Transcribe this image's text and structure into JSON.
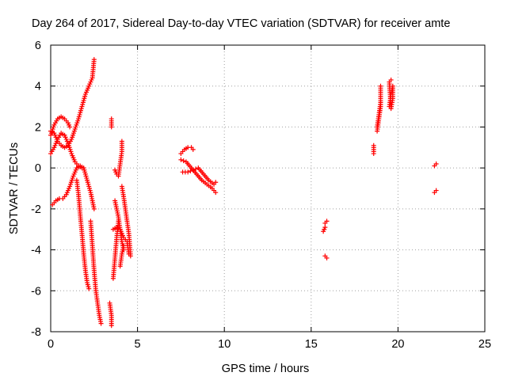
{
  "chart_data": {
    "type": "scatter",
    "title": "Day 264 of 2017, Sidereal Day-to-day VTEC variation (SDTVAR) for receiver amte",
    "xlabel": "GPS time / hours",
    "ylabel": "SDTVAR / TECUs",
    "xlim": [
      0,
      25
    ],
    "ylim": [
      -8,
      6
    ],
    "xticks": [
      "0",
      "5",
      "10",
      "15",
      "20",
      "25"
    ],
    "yticks": [
      "-8",
      "-6",
      "-4",
      "-2",
      "0",
      "2",
      "4",
      "6"
    ],
    "grid": true,
    "marker": "+",
    "series": [
      {
        "name": "SDTVAR",
        "color": "#ff0000",
        "tracks": [
          [
            [
              0.0,
              0.7
            ],
            [
              0.2,
              1.0
            ],
            [
              0.4,
              1.4
            ],
            [
              0.6,
              1.7
            ],
            [
              0.8,
              1.6
            ],
            [
              1.0,
              1.2
            ],
            [
              1.2,
              0.7
            ],
            [
              1.4,
              0.3
            ],
            [
              1.6,
              0.1
            ],
            [
              1.8,
              0.0
            ]
          ],
          [
            [
              0.0,
              1.6
            ],
            [
              0.2,
              2.1
            ],
            [
              0.4,
              2.4
            ],
            [
              0.6,
              2.5
            ],
            [
              0.8,
              2.4
            ],
            [
              1.0,
              2.2
            ],
            [
              1.1,
              2.0
            ]
          ],
          [
            [
              0.0,
              1.8
            ],
            [
              0.2,
              1.7
            ],
            [
              0.4,
              1.3
            ],
            [
              0.6,
              1.1
            ],
            [
              0.8,
              1.0
            ],
            [
              1.0,
              1.1
            ],
            [
              1.2,
              1.4
            ],
            [
              1.4,
              1.9
            ],
            [
              1.6,
              2.4
            ],
            [
              1.8,
              3.0
            ],
            [
              2.0,
              3.6
            ],
            [
              2.2,
              4.0
            ],
            [
              2.4,
              4.4
            ],
            [
              2.5,
              5.3
            ]
          ],
          [
            [
              0.1,
              -1.8
            ],
            [
              0.3,
              -1.6
            ],
            [
              0.5,
              -1.5
            ],
            [
              0.7,
              -1.5
            ],
            [
              0.9,
              -1.3
            ],
            [
              1.1,
              -0.9
            ],
            [
              1.3,
              -0.4
            ],
            [
              1.5,
              0.0
            ],
            [
              1.7,
              0.1
            ],
            [
              1.9,
              0.0
            ],
            [
              2.1,
              -0.6
            ],
            [
              2.3,
              -1.2
            ],
            [
              2.5,
              -2.0
            ]
          ],
          [
            [
              1.5,
              -0.6
            ],
            [
              1.6,
              -1.3
            ],
            [
              1.7,
              -2.3
            ],
            [
              1.8,
              -3.2
            ],
            [
              1.9,
              -4.2
            ],
            [
              2.0,
              -5.0
            ],
            [
              2.1,
              -5.6
            ],
            [
              2.2,
              -5.9
            ]
          ],
          [
            [
              2.3,
              -2.6
            ],
            [
              2.4,
              -3.8
            ],
            [
              2.5,
              -5.0
            ],
            [
              2.6,
              -6.0
            ],
            [
              2.7,
              -6.6
            ],
            [
              2.8,
              -7.2
            ],
            [
              2.9,
              -7.6
            ]
          ],
          [
            [
              3.4,
              -6.6
            ],
            [
              3.5,
              -7.2
            ],
            [
              3.5,
              -7.7
            ]
          ],
          [
            [
              3.5,
              2.4
            ],
            [
              3.5,
              2.0
            ]
          ],
          [
            [
              3.7,
              -0.1
            ],
            [
              3.8,
              -0.3
            ],
            [
              3.9,
              -0.4
            ],
            [
              4.0,
              0.2
            ],
            [
              4.1,
              0.8
            ],
            [
              4.1,
              1.3
            ]
          ],
          [
            [
              3.6,
              -3.0
            ],
            [
              3.8,
              -2.9
            ],
            [
              4.0,
              -3.0
            ],
            [
              4.2,
              -3.4
            ],
            [
              4.4,
              -3.6
            ],
            [
              4.5,
              -4.2
            ]
          ],
          [
            [
              3.7,
              -1.6
            ],
            [
              3.8,
              -2.0
            ],
            [
              3.9,
              -2.4
            ],
            [
              4.0,
              -3.0
            ],
            [
              4.1,
              -3.6
            ],
            [
              4.2,
              -4.0
            ]
          ],
          [
            [
              3.6,
              -5.4
            ],
            [
              3.7,
              -4.4
            ],
            [
              3.8,
              -3.4
            ],
            [
              3.9,
              -2.6
            ]
          ],
          [
            [
              4.1,
              -0.9
            ],
            [
              4.2,
              -1.4
            ],
            [
              4.3,
              -2.0
            ],
            [
              4.4,
              -2.6
            ],
            [
              4.5,
              -3.2
            ],
            [
              4.6,
              -4.3
            ]
          ],
          [
            [
              4.0,
              -4.8
            ],
            [
              4.1,
              -4.2
            ],
            [
              4.2,
              -3.8
            ]
          ],
          [
            [
              7.5,
              0.7
            ],
            [
              7.7,
              0.9
            ],
            [
              7.9,
              1.0
            ],
            [
              8.1,
              1.0
            ],
            [
              8.2,
              0.9
            ]
          ],
          [
            [
              7.5,
              0.4
            ],
            [
              7.8,
              0.3
            ],
            [
              8.1,
              0.0
            ],
            [
              8.4,
              -0.3
            ],
            [
              8.7,
              -0.6
            ],
            [
              9.0,
              -0.8
            ],
            [
              9.3,
              -1.0
            ],
            [
              9.5,
              -1.2
            ]
          ],
          [
            [
              7.6,
              -0.2
            ],
            [
              7.9,
              -0.2
            ],
            [
              8.2,
              -0.1
            ],
            [
              8.5,
              0.0
            ],
            [
              8.8,
              -0.3
            ],
            [
              9.1,
              -0.6
            ],
            [
              9.4,
              -0.8
            ],
            [
              9.5,
              -0.7
            ]
          ],
          [
            [
              15.8,
              -2.7
            ],
            [
              15.9,
              -2.6
            ]
          ],
          [
            [
              15.7,
              -3.1
            ],
            [
              15.8,
              -2.9
            ]
          ],
          [
            [
              15.8,
              -4.3
            ],
            [
              15.9,
              -4.4
            ]
          ],
          [
            [
              18.6,
              1.1
            ],
            [
              18.6,
              0.7
            ]
          ],
          [
            [
              18.8,
              2.0
            ],
            [
              18.9,
              2.6
            ],
            [
              19.0,
              3.2
            ]
          ],
          [
            [
              18.8,
              1.8
            ],
            [
              18.9,
              2.4
            ],
            [
              19.0,
              3.0
            ],
            [
              19.0,
              4.0
            ]
          ],
          [
            [
              19.5,
              3.0
            ],
            [
              19.6,
              3.6
            ],
            [
              19.7,
              4.0
            ],
            [
              19.7,
              3.4
            ],
            [
              19.6,
              2.9
            ],
            [
              19.5,
              4.2
            ],
            [
              19.6,
              4.3
            ]
          ],
          [
            [
              22.1,
              0.1
            ],
            [
              22.2,
              0.2
            ]
          ],
          [
            [
              22.1,
              -1.2
            ],
            [
              22.2,
              -1.1
            ]
          ]
        ]
      }
    ]
  }
}
